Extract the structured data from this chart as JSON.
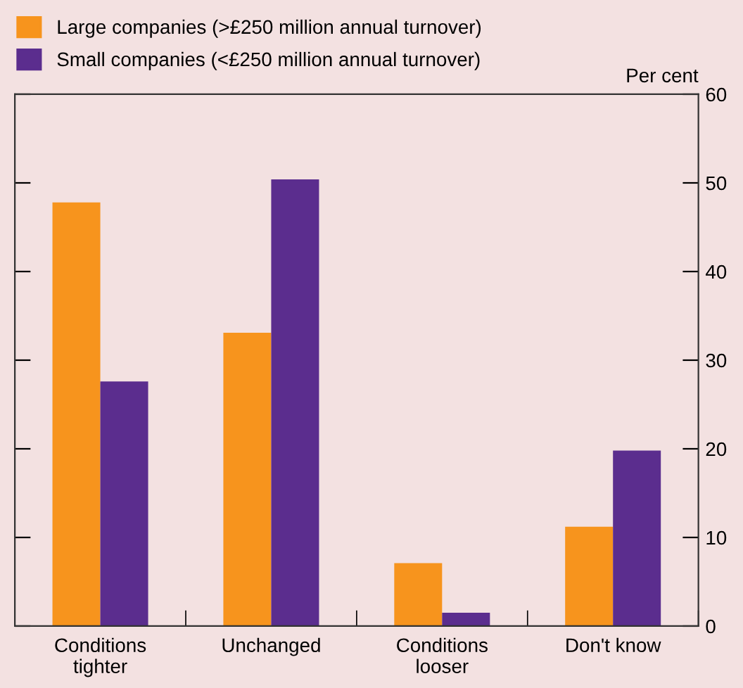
{
  "chart_data": {
    "type": "bar",
    "ylabel": "Per cent",
    "categories": [
      "Conditions\ntighter",
      "Unchanged",
      "Conditions\nlooser",
      "Don't know"
    ],
    "series": [
      {
        "name": "Large companies (>£250 million annual turnover)",
        "color": "#f7941d",
        "values": [
          47.8,
          33.1,
          7.1,
          11.2
        ]
      },
      {
        "name": "Small companies (<£250 million annual turnover)",
        "color": "#5b2d8e",
        "values": [
          27.6,
          50.4,
          1.5,
          19.8
        ]
      }
    ],
    "ylim": [
      0,
      60
    ],
    "yticks": [
      0,
      10,
      20,
      30,
      40,
      50,
      60
    ],
    "grid": false,
    "legend": "top left"
  }
}
